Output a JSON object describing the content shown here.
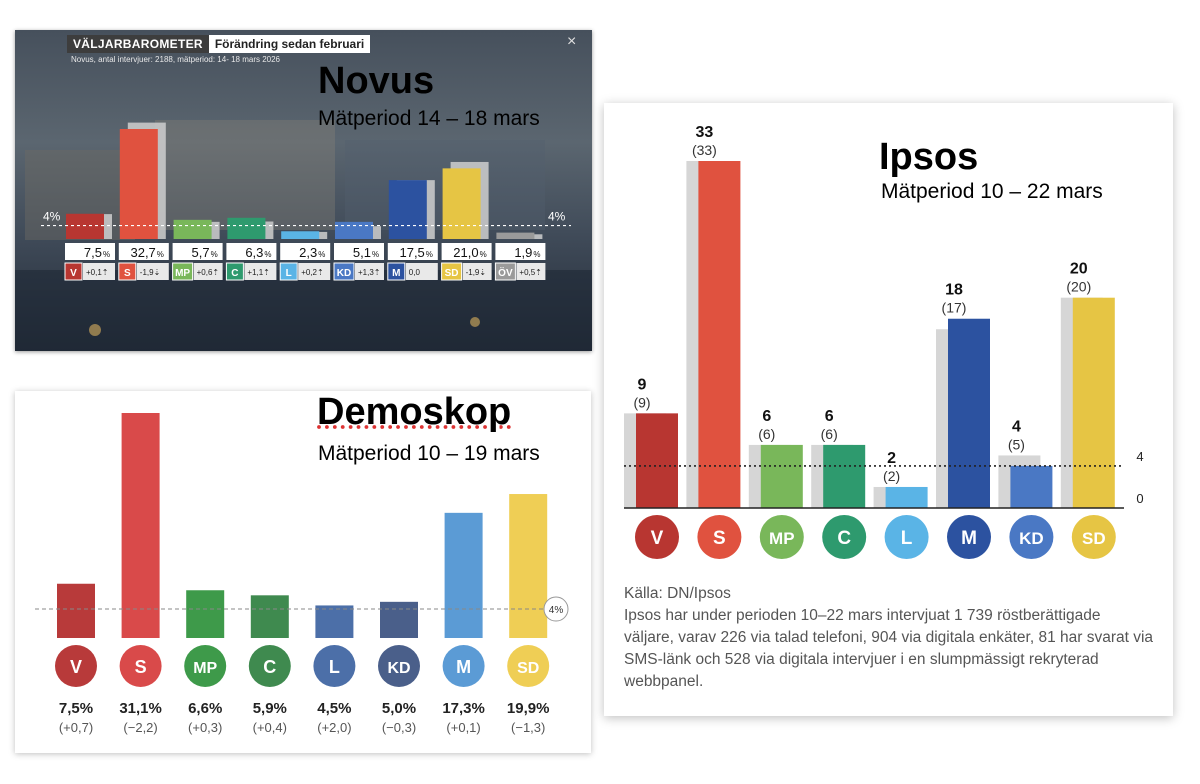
{
  "novus": {
    "title": "Novus",
    "period": "Mätperiod 14 – 18 mars",
    "header_label": "VÄLJARBAROMETER",
    "header_tab": "Förändring sedan februari",
    "note": "Novus, antal intervjuer: 2188, mätperiod: 14- 18 mars 2026",
    "close_symbol": "×",
    "threshold_label": "4%"
  },
  "demoskop": {
    "title": "Demoskop",
    "period": "Mätperiod 10 – 19 mars",
    "threshold_label": "4%"
  },
  "ipsos": {
    "title": "Ipsos",
    "period": "Mätperiod 10 – 22 mars",
    "source_title": "Källa: DN/Ipsos",
    "source_text": "Ipsos har under perioden 10–22 mars intervjuat 1 739 röstberättigade väljare, varav 226 via talad telefoni, 904 via digitala enkäter, 81 har svarat via SMS-länk och 528 via digitala intervjuer i en slumpmässigt rekryterad webbpanel.",
    "axis_labels": [
      "4",
      "0"
    ]
  },
  "colors": {
    "V": "#b83631",
    "S": "#e0523f",
    "MP": "#79b75a",
    "C": "#2e9a6e",
    "L": "#5ab4e6",
    "KD": "#4a78c4",
    "M": "#2c52a0",
    "SD": "#e6c544",
    "ÖV": "#9a9a9a"
  },
  "chart_data": [
    {
      "type": "bar",
      "title": "Novus",
      "subtitle": "Mätperiod 14 – 18 mars",
      "categories": [
        "V",
        "S",
        "MP",
        "C",
        "L",
        "KD",
        "M",
        "SD",
        "ÖV"
      ],
      "series": [
        {
          "name": "mars",
          "values": [
            7.5,
            32.7,
            5.7,
            6.3,
            2.3,
            5.1,
            17.5,
            21.0,
            1.9
          ]
        },
        {
          "name": "februari",
          "values": [
            7.4,
            34.6,
            5.1,
            5.2,
            2.1,
            3.8,
            17.5,
            22.9,
            1.4
          ]
        }
      ],
      "value_labels": [
        "7,5",
        "32,7",
        "5,7",
        "6,3",
        "2,3",
        "5,1",
        "17,5",
        "21,0",
        "1,9"
      ],
      "change_labels": [
        "+0,1",
        "-1,9",
        "+0,6",
        "+1,1",
        "+0,2",
        "+1,3",
        "0,0",
        "-1,9",
        "+0,5"
      ],
      "change_arrows": [
        "⇡",
        "⇣",
        "⇡",
        "⇡",
        "⇡",
        "⇡",
        "",
        "⇣",
        "⇡"
      ],
      "threshold": 4,
      "ylim": [
        0,
        35
      ]
    },
    {
      "type": "bar",
      "title": "Demoskop",
      "subtitle": "Mätperiod 10 – 19 mars",
      "categories": [
        "V",
        "S",
        "MP",
        "C",
        "L",
        "KD",
        "M",
        "SD"
      ],
      "values": [
        7.5,
        31.1,
        6.6,
        5.9,
        4.5,
        5.0,
        17.3,
        19.9
      ],
      "value_labels": [
        "7,5%",
        "31,1%",
        "6,6%",
        "5,9%",
        "4,5%",
        "5,0%",
        "17,3%",
        "19,9%"
      ],
      "change_labels": [
        "(+0,7)",
        "(−2,2)",
        "(+0,3)",
        "(+0,4)",
        "(+2,0)",
        "(−0,3)",
        "(+0,1)",
        "(−1,3)"
      ],
      "bar_colors": [
        "#b83a3a",
        "#d94a4a",
        "#3e9a4a",
        "#3f8a4f",
        "#4c6fa8",
        "#4a5f8a",
        "#5b9bd5",
        "#efce55"
      ],
      "threshold": 4,
      "ylim": [
        0,
        32
      ]
    },
    {
      "type": "bar",
      "title": "Ipsos",
      "subtitle": "Mätperiod 10 – 22 mars",
      "categories": [
        "V",
        "S",
        "MP",
        "C",
        "L",
        "M",
        "KD",
        "SD"
      ],
      "series": [
        {
          "name": "current",
          "values": [
            9,
            33,
            6,
            6,
            2,
            18,
            4,
            20
          ]
        },
        {
          "name": "previous",
          "values": [
            9,
            33,
            6,
            6,
            2,
            17,
            5,
            20
          ]
        }
      ],
      "value_labels": [
        "9",
        "33",
        "6",
        "6",
        "2",
        "18",
        "4",
        "20"
      ],
      "previous_labels": [
        "(9)",
        "(33)",
        "(6)",
        "(6)",
        "(2)",
        "(17)",
        "(5)",
        "(20)"
      ],
      "threshold": 4,
      "ylim": [
        0,
        33
      ]
    }
  ]
}
